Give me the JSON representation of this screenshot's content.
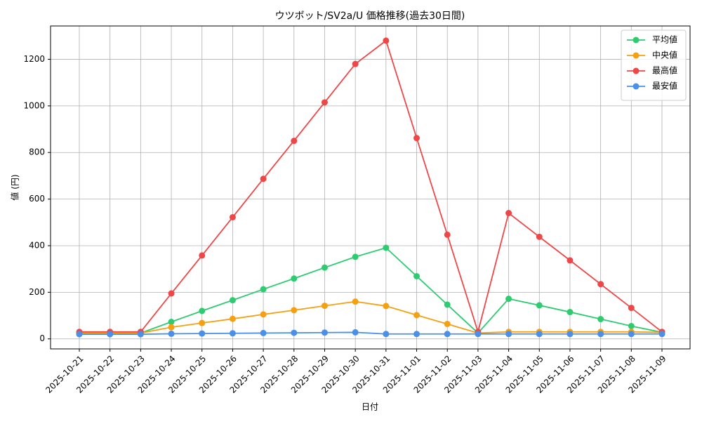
{
  "chart_data": {
    "type": "line",
    "title": "ウツボット/SV2a/U 価格推移(過去30日間)",
    "x_label": "日付",
    "y_label": "値 (円)",
    "categories": [
      "2025-10-21",
      "2025-10-22",
      "2025-10-23",
      "2025-10-24",
      "2025-10-25",
      "2025-10-26",
      "2025-10-27",
      "2025-10-28",
      "2025-10-29",
      "2025-10-30",
      "2025-10-31",
      "2025-11-01",
      "2025-11-02",
      "2025-11-03",
      "2025-11-04",
      "2025-11-05",
      "2025-11-06",
      "2025-11-07",
      "2025-11-08",
      "2025-11-09"
    ],
    "series": [
      {
        "name": "平均値",
        "color": "#2ecc71",
        "values": [
          25,
          25,
          25,
          73,
          120,
          166,
          213,
          259,
          306,
          352,
          391,
          269,
          147,
          25,
          172,
          144,
          115,
          85,
          55,
          28
        ]
      },
      {
        "name": "中央値",
        "color": "#f5a011",
        "values": [
          25,
          25,
          25,
          50,
          68,
          86,
          105,
          123,
          142,
          160,
          141,
          102,
          64,
          25,
          30,
          30,
          30,
          30,
          30,
          28
        ]
      },
      {
        "name": "最高値",
        "color": "#ef4747",
        "values": [
          30,
          30,
          30,
          195,
          358,
          522,
          687,
          850,
          1015,
          1180,
          1280,
          862,
          447,
          30,
          540,
          438,
          337,
          235,
          133,
          30
        ]
      },
      {
        "name": "最安値",
        "color": "#4a90e8",
        "values": [
          20,
          20,
          20,
          22,
          23,
          24,
          25,
          26,
          27,
          28,
          21,
          21,
          21,
          21,
          21,
          21,
          21,
          21,
          21,
          21
        ]
      }
    ],
    "ylim": [
      -43,
      1343
    ],
    "yticks": [
      0,
      200,
      400,
      600,
      800,
      1000,
      1200
    ],
    "grid": true,
    "legend": "upper-right"
  }
}
